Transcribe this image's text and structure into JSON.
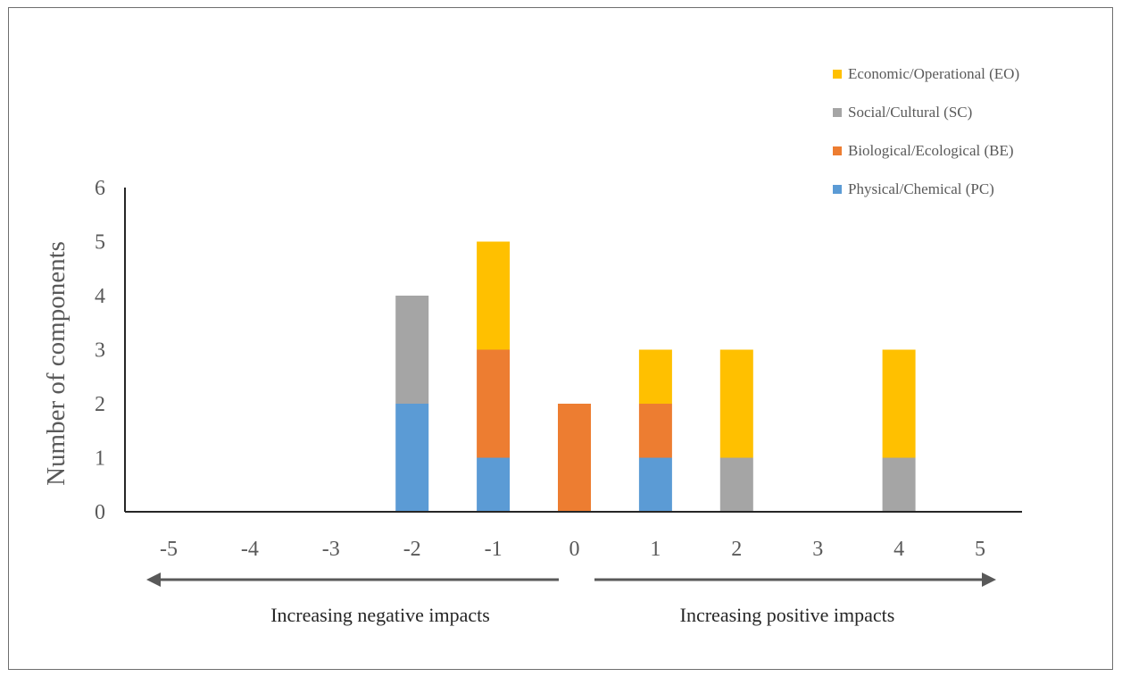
{
  "chart_data": {
    "type": "bar",
    "stacked": true,
    "categories": [
      "-5",
      "-4",
      "-3",
      "-2",
      "-1",
      "0",
      "1",
      "2",
      "3",
      "4",
      "5"
    ],
    "series": [
      {
        "name": "Physical/Chemical (PC)",
        "color": "#5b9bd5",
        "values": [
          0,
          0,
          0,
          2,
          1,
          0,
          1,
          0,
          0,
          0,
          0
        ]
      },
      {
        "name": "Biological/Ecological (BE)",
        "color": "#ed7d31",
        "values": [
          0,
          0,
          0,
          0,
          2,
          2,
          1,
          0,
          0,
          0,
          0
        ]
      },
      {
        "name": "Social/Cultural (SC)",
        "color": "#a5a5a5",
        "values": [
          0,
          0,
          0,
          2,
          0,
          0,
          0,
          1,
          0,
          1,
          0
        ]
      },
      {
        "name": "Economic/Operational (EO)",
        "color": "#ffc000",
        "values": [
          0,
          0,
          0,
          0,
          2,
          0,
          1,
          2,
          0,
          2,
          0
        ]
      }
    ],
    "legend_order": [
      "Economic/Operational (EO)",
      "Social/Cultural (SC)",
      "Biological/Ecological (BE)",
      "Physical/Chemical (PC)"
    ],
    "legend_position": "top-right",
    "ylabel": "Number of components",
    "yticks": [
      "0",
      "1",
      "2",
      "3",
      "4",
      "5",
      "6"
    ],
    "ylim": [
      0,
      6
    ],
    "grid": false,
    "annotations": {
      "left_arrow": "Increasing negative impacts",
      "right_arrow": "Increasing positive impacts"
    }
  }
}
